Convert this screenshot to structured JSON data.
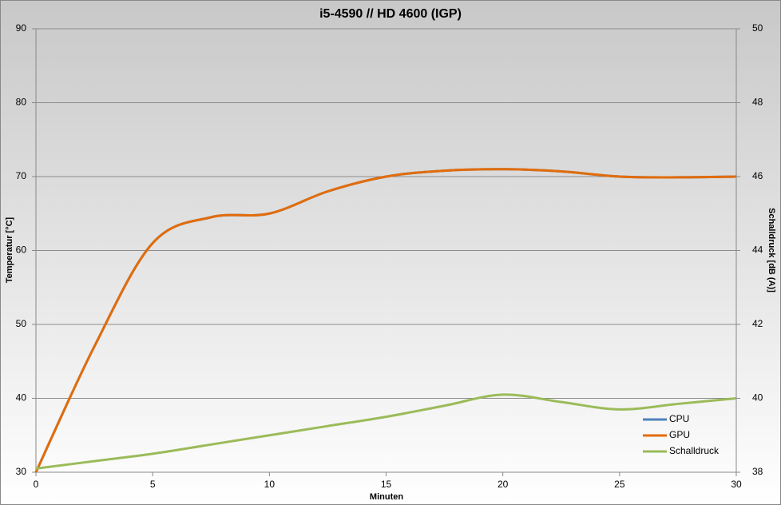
{
  "chart_data": {
    "type": "line",
    "title": "i5-4590 // HD 4600 (IGP)",
    "x_label": "Minuten",
    "y_label": "Temperatur [°C]",
    "y2_label": "Schalldruck  [dB (A)]",
    "x": [
      0,
      2.5,
      5,
      7.5,
      10,
      12.5,
      15,
      17.5,
      20,
      22.5,
      25,
      27.5,
      30
    ],
    "series": [
      {
        "name": "CPU",
        "color": "#4f81bd",
        "values": [
          30,
          47,
          61,
          64.5,
          65,
          68,
          70,
          70.8,
          71,
          70.7,
          70,
          69.9,
          70
        ]
      },
      {
        "name": "GPU",
        "color": "#e36c09",
        "values": [
          30,
          47,
          61,
          64.5,
          65,
          68,
          70,
          70.8,
          71,
          70.7,
          70,
          69.9,
          70
        ]
      },
      {
        "name": "Schalldruck",
        "color": "#9bbb59",
        "axis": "y2",
        "values": [
          38.1,
          38.3,
          38.5,
          38.75,
          39,
          39.25,
          39.5,
          39.8,
          40.1,
          39.9,
          39.7,
          39.85,
          40
        ]
      }
    ],
    "xlim": [
      0,
      30
    ],
    "xticks": [
      0,
      5,
      10,
      15,
      20,
      25,
      30
    ],
    "ylim": [
      30,
      90
    ],
    "yticks": [
      30,
      40,
      50,
      60,
      70,
      80,
      90
    ],
    "y2lim": [
      38,
      50
    ],
    "y2ticks": [
      38,
      40,
      42,
      44,
      46,
      48,
      50
    ],
    "grid": true,
    "smooth": true,
    "legend": "lower right"
  }
}
